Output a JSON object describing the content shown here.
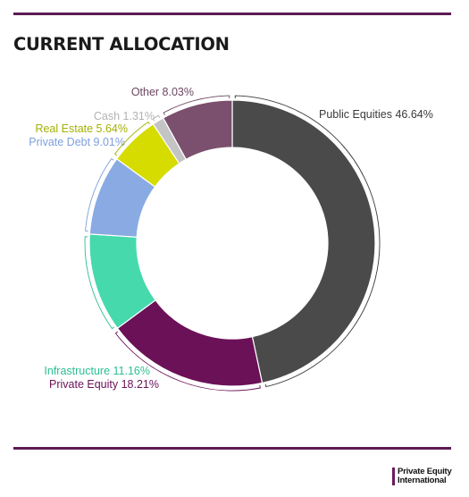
{
  "title": "CURRENT ALLOCATION",
  "chart_data": {
    "type": "pie",
    "title": "CURRENT ALLOCATION",
    "categories": [
      "Public Equities",
      "Private Equity",
      "Infrastructure",
      "Private Debt",
      "Real Estate",
      "Cash",
      "Other"
    ],
    "values": [
      46.64,
      18.21,
      11.16,
      9.01,
      5.64,
      1.31,
      8.03
    ],
    "labels": [
      "Public Equities 46.64%",
      "Private Equity 18.21%",
      "Infrastructure 11.16%",
      "Private Debt 9.01%",
      "Real Estate 5.64%",
      "Cash 1.31%",
      "Other 8.03%"
    ],
    "colors": [
      "#4a4a4a",
      "#6b1157",
      "#45d9ac",
      "#8aaae4",
      "#d6dc00",
      "#c4c4c4",
      "#7b4f6e"
    ],
    "label_colors": [
      "#3a3a3a",
      "#6b1157",
      "#2bbf93",
      "#7c9fdc",
      "#a4b000",
      "#b3b3b3",
      "#6b4860"
    ],
    "style": "donut",
    "legend": "none"
  },
  "logo": {
    "line1": "Private Equity",
    "line2": "International"
  }
}
